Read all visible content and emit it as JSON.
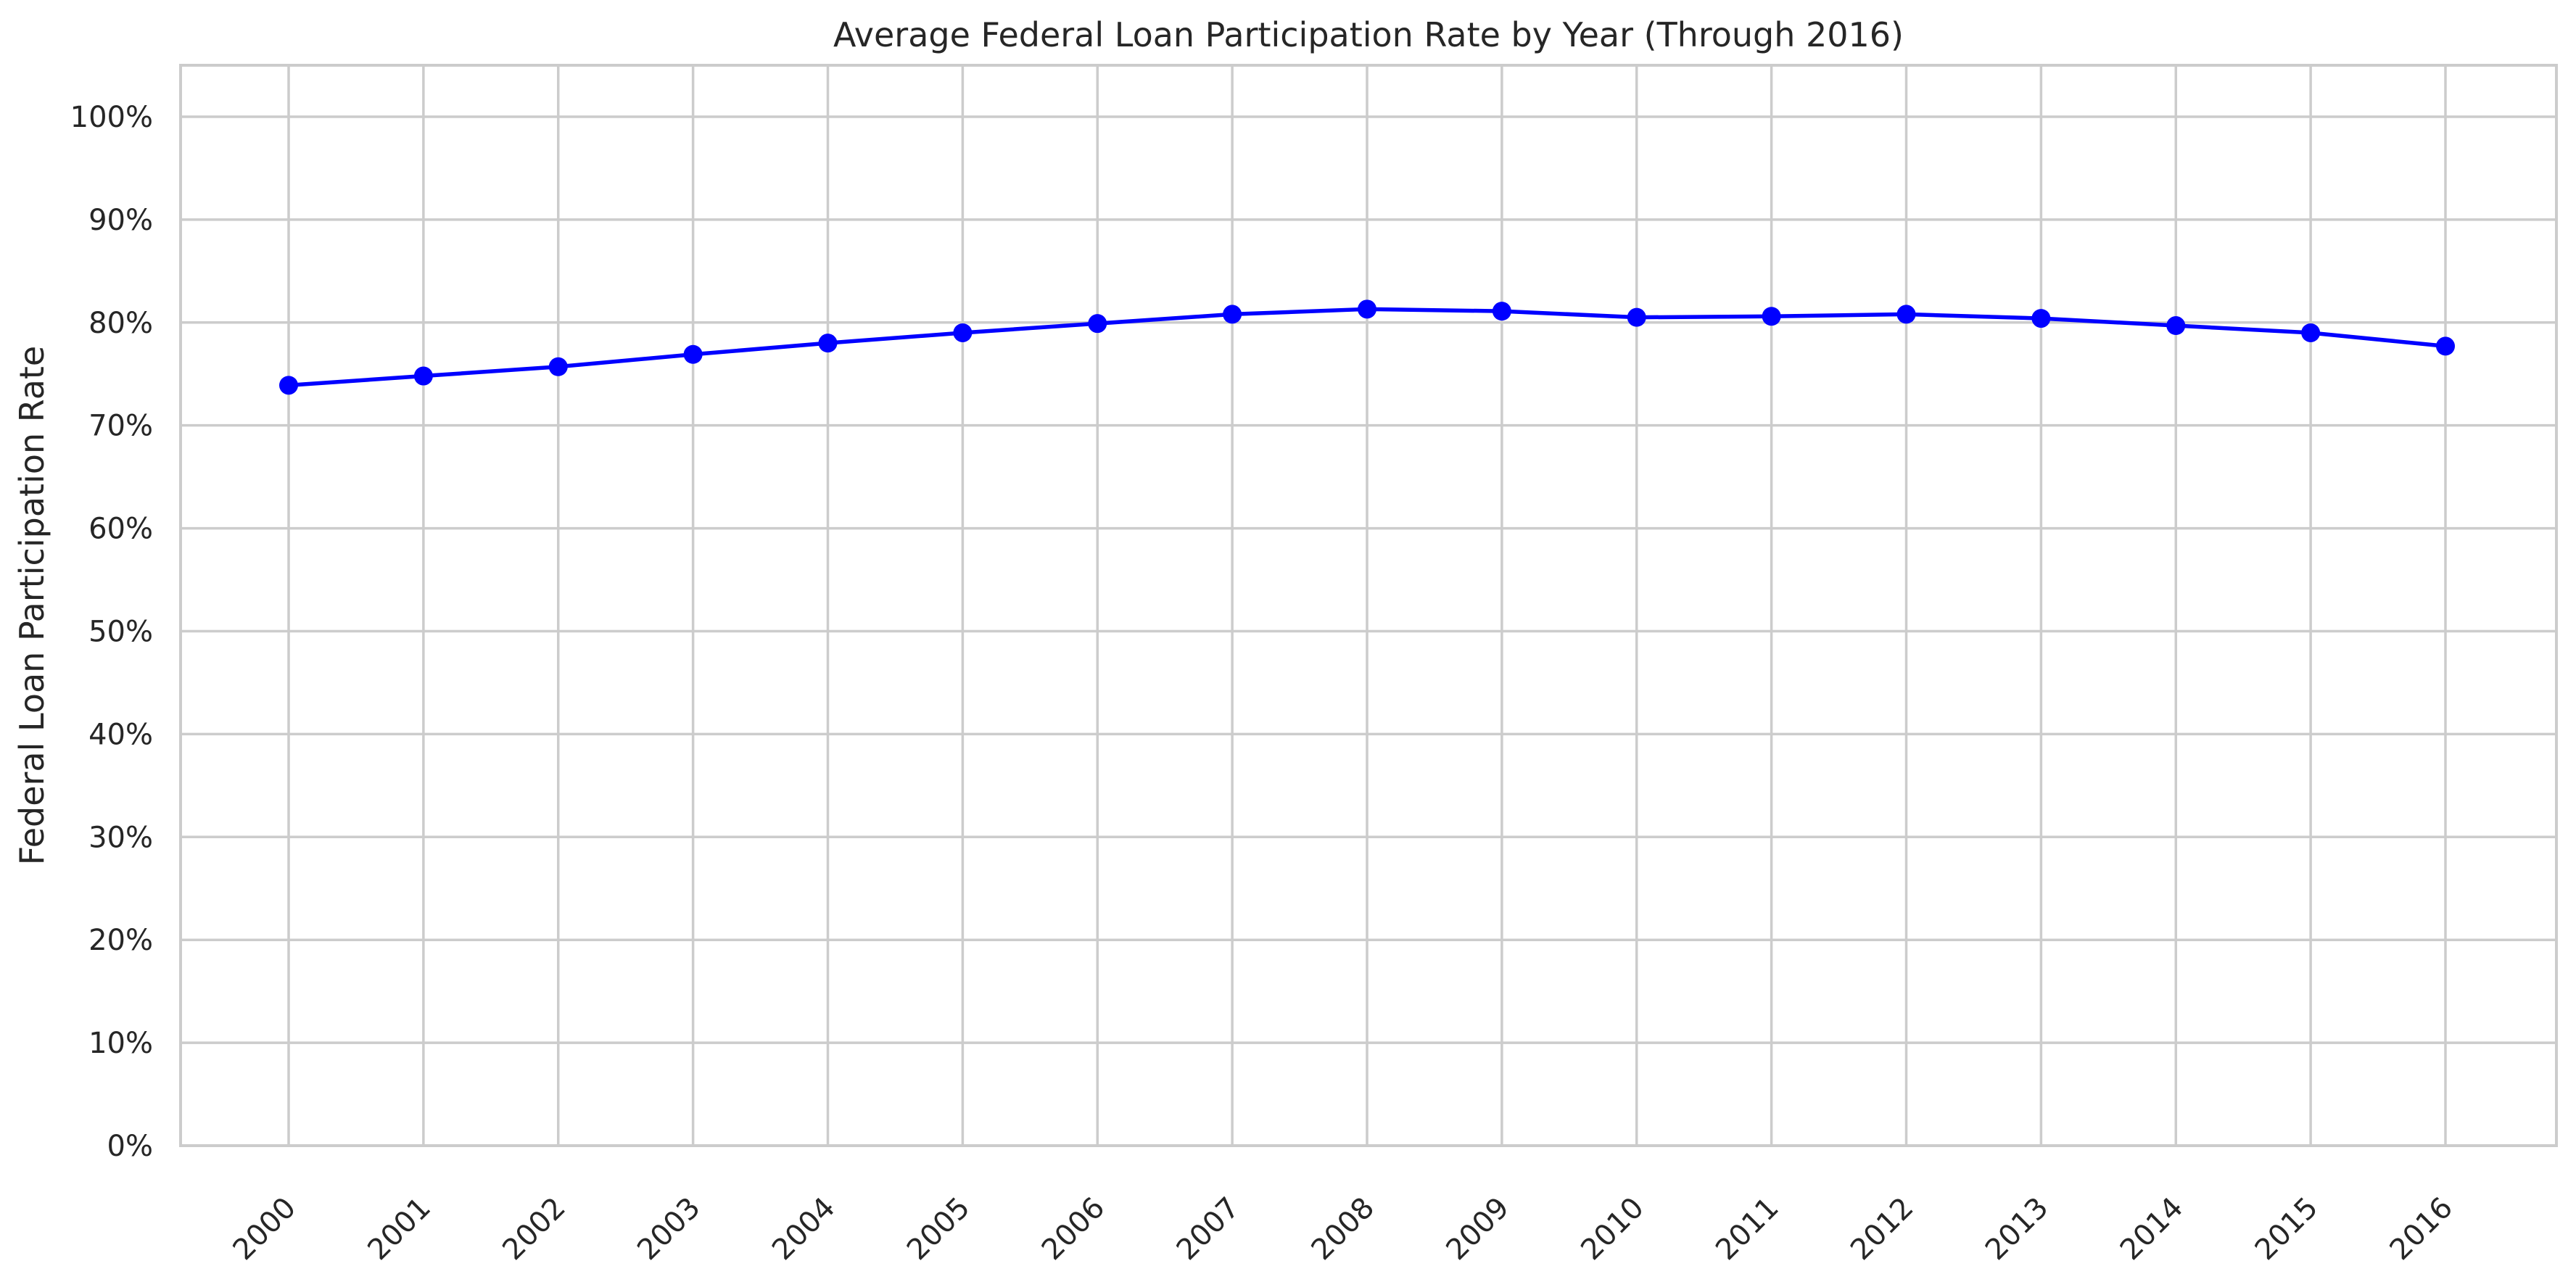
{
  "chart_data": {
    "type": "line",
    "title": "Average Federal Loan Participation Rate by Year (Through 2016)",
    "xlabel": "",
    "ylabel": "Federal Loan Participation Rate",
    "x": [
      "2000",
      "2001",
      "2002",
      "2003",
      "2004",
      "2005",
      "2006",
      "2007",
      "2008",
      "2009",
      "2010",
      "2011",
      "2012",
      "2013",
      "2014",
      "2015",
      "2016"
    ],
    "series": [
      {
        "values": [
          0.739,
          0.748,
          0.757,
          0.769,
          0.78,
          0.79,
          0.799,
          0.808,
          0.813,
          0.811,
          0.805,
          0.806,
          0.808,
          0.804,
          0.797,
          0.79,
          0.777
        ],
        "color": "#0000ff",
        "marker": "circle"
      }
    ],
    "ylim": [
      0,
      1.05
    ],
    "yticks": [
      {
        "value": 0.0,
        "label": "0%"
      },
      {
        "value": 0.1,
        "label": "10%"
      },
      {
        "value": 0.2,
        "label": "20%"
      },
      {
        "value": 0.3,
        "label": "30%"
      },
      {
        "value": 0.4,
        "label": "40%"
      },
      {
        "value": 0.5,
        "label": "50%"
      },
      {
        "value": 0.6,
        "label": "60%"
      },
      {
        "value": 0.7,
        "label": "70%"
      },
      {
        "value": 0.8,
        "label": "80%"
      },
      {
        "value": 0.9,
        "label": "90%"
      },
      {
        "value": 1.0,
        "label": "100%"
      }
    ],
    "xtick_rotation": 45,
    "grid": true,
    "gridColor": "#cccccc",
    "spineColor": "#cccccc"
  }
}
